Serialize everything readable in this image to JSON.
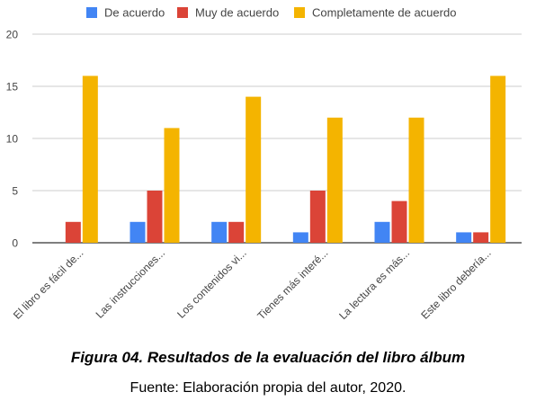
{
  "chart_data": {
    "type": "bar",
    "categories": [
      "El libro es fácil de...",
      "Las instrucciones...",
      "Los contenidos vi...",
      "Tienes más interé...",
      "La lectura es más...",
      "Este libro debería..."
    ],
    "series": [
      {
        "name": "De acuerdo",
        "color": "#4285f4",
        "values": [
          0,
          2,
          2,
          1,
          2,
          1
        ]
      },
      {
        "name": "Muy de acuerdo",
        "color": "#db4437",
        "values": [
          2,
          5,
          2,
          5,
          4,
          1
        ]
      },
      {
        "name": "Completamente de acuerdo",
        "color": "#f4b400",
        "values": [
          16,
          11,
          14,
          12,
          12,
          16
        ]
      }
    ],
    "ylim": [
      0,
      20
    ],
    "yticks": [
      0,
      5,
      10,
      15,
      20
    ],
    "grid": true,
    "legend_position": "top"
  },
  "caption": {
    "title": "Figura 04. Resultados de la evaluación del libro álbum",
    "source": "Fuente: Elaboración propia del autor, 2020."
  }
}
